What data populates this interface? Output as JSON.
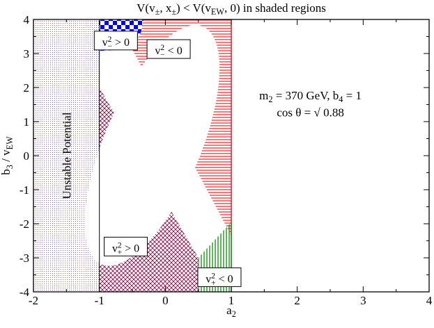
{
  "chart_data": {
    "type": "region-plot",
    "title": "V(v±, x±) < V(vEW, 0) in shaded regions",
    "xlabel": "a2",
    "ylabel": "b3 / vEW",
    "xlim": [
      -2,
      4
    ],
    "ylim": [
      -4,
      4
    ],
    "xticks": [
      -2,
      -1,
      0,
      1,
      2,
      3,
      4
    ],
    "yticks": [
      -4,
      -3,
      -2,
      -1,
      0,
      1,
      2,
      3,
      4
    ],
    "annotations": {
      "params_line1": "m2 = 370 GeV, b4 = 1",
      "params_line2": "cos θ = √ 0.88",
      "unstable": "Unstable Potential"
    },
    "ellipse": {
      "center": [
        -0.2,
        0.3
      ],
      "semi_axes": [
        0.77,
        3.6
      ],
      "tilt_deg": 11
    },
    "regions": [
      {
        "name": "Unstable Potential",
        "pattern": "purple-dots",
        "color": "#8a5fb0",
        "polygon": [
          [
            -2,
            -4
          ],
          [
            -1,
            -4
          ],
          [
            -1,
            4
          ],
          [
            -2,
            4
          ]
        ]
      },
      {
        "name": "v−² > 0",
        "label": "v−² > 0",
        "pattern": "blue-checker",
        "color": "#0000ee",
        "polygon": [
          [
            -1,
            4
          ],
          [
            -0.33,
            4
          ],
          [
            -0.37,
            3.62
          ],
          [
            -0.5,
            3.12
          ],
          [
            -1,
            3.08
          ]
        ],
        "label_pos": [
          -0.75,
          3.35
        ]
      },
      {
        "name": "v−² < 0",
        "label": "v−² < 0",
        "pattern": "red-hlines",
        "color": "#cc0000",
        "polygon": [
          [
            -0.33,
            4
          ],
          [
            1,
            4
          ],
          [
            1,
            -2.35
          ],
          [
            -0.5,
            3.12
          ],
          [
            -0.37,
            3.62
          ]
        ],
        "label_pos": [
          0.05,
          3.1
        ]
      },
      {
        "name": "v+² > 0",
        "label": "v+² > 0",
        "pattern": "maroon-crosshatch",
        "color": "#800040",
        "polygon": [
          [
            -1,
            -4
          ],
          [
            0.5,
            -4
          ],
          [
            0.5,
            -3.0
          ],
          [
            -1,
            2.0
          ]
        ],
        "label_pos": [
          -0.6,
          -2.7
        ]
      },
      {
        "name": "v+² < 0",
        "label": "v+² < 0",
        "pattern": "green-vlines",
        "color": "#007a00",
        "polygon": [
          [
            0.5,
            -4
          ],
          [
            1,
            -4
          ],
          [
            1,
            -1.95
          ],
          [
            0.5,
            -3.0
          ]
        ],
        "label_pos": [
          0.82,
          -3.6
        ]
      }
    ]
  }
}
